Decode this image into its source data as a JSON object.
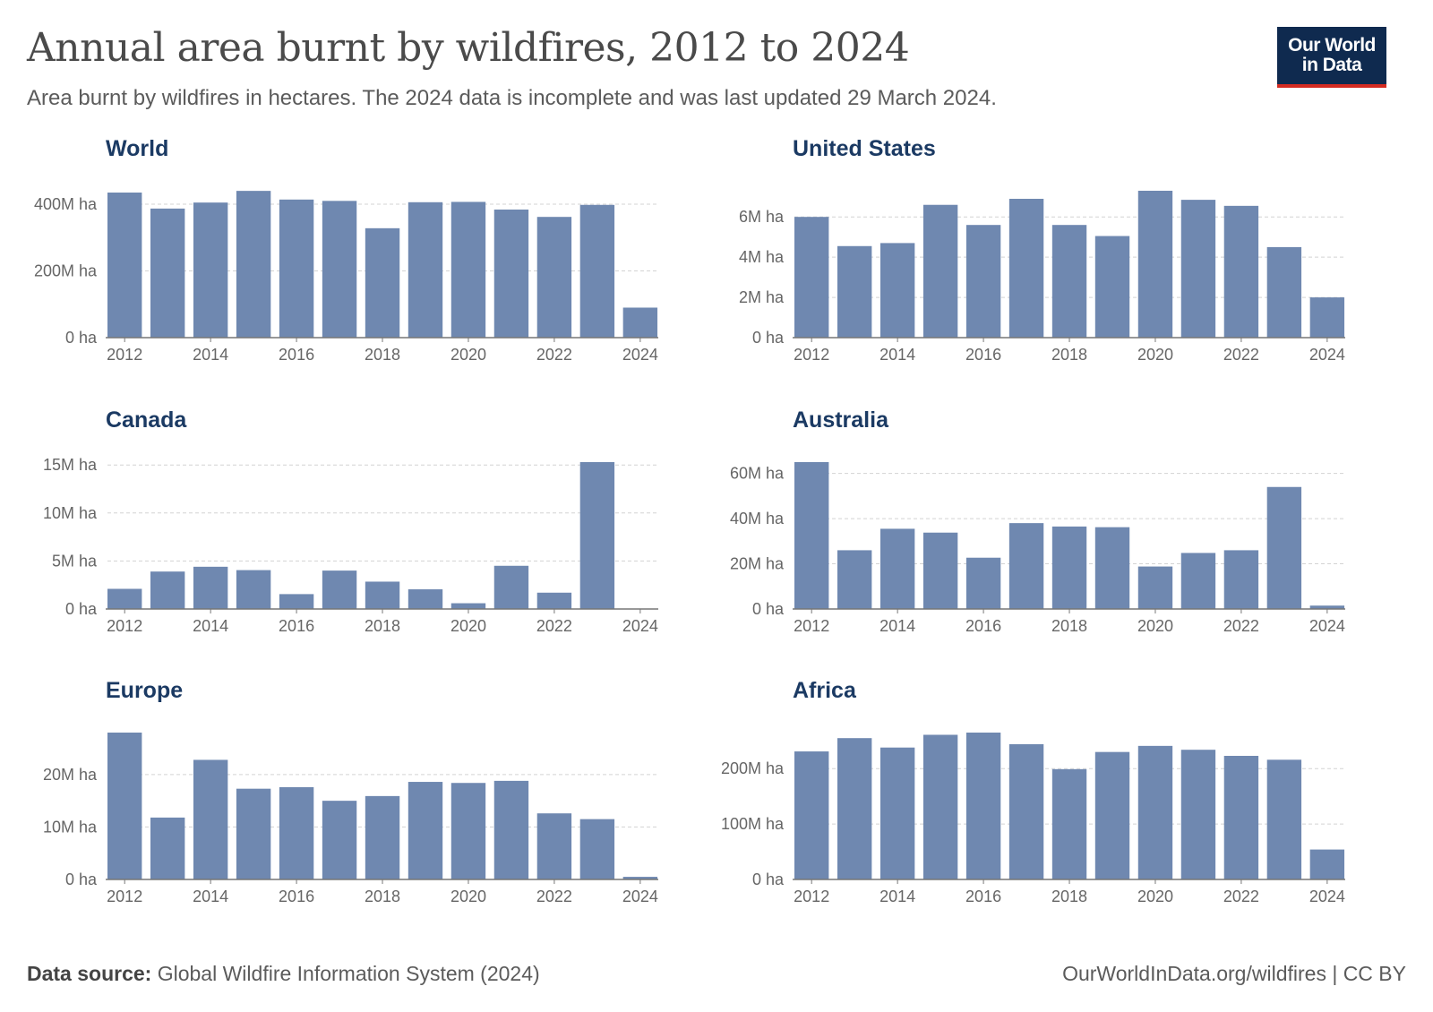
{
  "header": {
    "title": "Annual area burnt by wildfires, 2012 to 2024",
    "subtitle": "Area burnt by wildfires in hectares. The 2024 data is incomplete and was last updated 29 March 2024.",
    "logo_line1": "Our World",
    "logo_line2": "in Data"
  },
  "footer": {
    "source_label": "Data source:",
    "source_text": "Global Wildfire Information System (2024)",
    "credit": "OurWorldInData.org/wildfires | CC BY"
  },
  "colors": {
    "bar": "#6f88b0",
    "panel_title": "#1b3a63",
    "grid": "#d3d3d3",
    "logo_bg": "#0f2a4f",
    "logo_accent": "#d42b21"
  },
  "chart_data": [
    {
      "type": "bar",
      "title": "World",
      "categories": [
        "2012",
        "2013",
        "2014",
        "2015",
        "2016",
        "2017",
        "2018",
        "2019",
        "2020",
        "2021",
        "2022",
        "2023",
        "2024"
      ],
      "x_tick_labels": [
        "2012",
        "2014",
        "2016",
        "2018",
        "2020",
        "2022",
        "2024"
      ],
      "values": [
        435000000,
        387000000,
        405000000,
        440000000,
        414000000,
        410000000,
        328000000,
        406000000,
        407000000,
        384000000,
        362000000,
        398000000,
        90000000
      ],
      "ylim": [
        0,
        435000000
      ],
      "yticks": [
        0,
        200000000,
        400000000
      ],
      "ytick_labels": [
        "0 ha",
        "200M ha",
        "400M ha"
      ]
    },
    {
      "type": "bar",
      "title": "United States",
      "categories": [
        "2012",
        "2013",
        "2014",
        "2015",
        "2016",
        "2017",
        "2018",
        "2019",
        "2020",
        "2021",
        "2022",
        "2023",
        "2024"
      ],
      "x_tick_labels": [
        "2012",
        "2014",
        "2016",
        "2018",
        "2020",
        "2022",
        "2024"
      ],
      "values": [
        6000000,
        4550000,
        4700000,
        6600000,
        5600000,
        6900000,
        5600000,
        5050000,
        7300000,
        6850000,
        6550000,
        4500000,
        2000000
      ],
      "ylim": [
        0,
        7300000
      ],
      "yticks": [
        0,
        2000000,
        4000000,
        6000000
      ],
      "ytick_labels": [
        "0 ha",
        "2M ha",
        "4M ha",
        "6M ha"
      ]
    },
    {
      "type": "bar",
      "title": "Canada",
      "categories": [
        "2012",
        "2013",
        "2014",
        "2015",
        "2016",
        "2017",
        "2018",
        "2019",
        "2020",
        "2021",
        "2022",
        "2023",
        "2024"
      ],
      "x_tick_labels": [
        "2012",
        "2014",
        "2016",
        "2018",
        "2020",
        "2022",
        "2024"
      ],
      "values": [
        2100000,
        3900000,
        4400000,
        4050000,
        1550000,
        4000000,
        2850000,
        2050000,
        600000,
        4500000,
        1700000,
        15300000,
        0
      ],
      "ylim": [
        0,
        15300000
      ],
      "yticks": [
        0,
        5000000,
        10000000,
        15000000
      ],
      "ytick_labels": [
        "0 ha",
        "5M ha",
        "10M ha",
        "15M ha"
      ]
    },
    {
      "type": "bar",
      "title": "Australia",
      "categories": [
        "2012",
        "2013",
        "2014",
        "2015",
        "2016",
        "2017",
        "2018",
        "2019",
        "2020",
        "2021",
        "2022",
        "2023",
        "2024"
      ],
      "x_tick_labels": [
        "2012",
        "2014",
        "2016",
        "2018",
        "2020",
        "2022",
        "2024"
      ],
      "values": [
        65000000,
        26000000,
        35500000,
        33800000,
        22700000,
        38000000,
        36500000,
        36200000,
        18800000,
        24800000,
        26000000,
        54000000,
        1500000
      ],
      "ylim": [
        0,
        65000000
      ],
      "yticks": [
        0,
        20000000,
        40000000,
        60000000
      ],
      "ytick_labels": [
        "0 ha",
        "20M ha",
        "40M ha",
        "60M ha"
      ]
    },
    {
      "type": "bar",
      "title": "Europe",
      "categories": [
        "2012",
        "2013",
        "2014",
        "2015",
        "2016",
        "2017",
        "2018",
        "2019",
        "2020",
        "2021",
        "2022",
        "2023",
        "2024"
      ],
      "x_tick_labels": [
        "2012",
        "2014",
        "2016",
        "2018",
        "2020",
        "2022",
        "2024"
      ],
      "values": [
        28000000,
        11800000,
        22800000,
        17300000,
        17600000,
        15000000,
        15900000,
        18600000,
        18400000,
        18800000,
        12600000,
        11500000,
        500000
      ],
      "ylim": [
        0,
        28000000
      ],
      "yticks": [
        0,
        10000000,
        20000000
      ],
      "ytick_labels": [
        "0 ha",
        "10M ha",
        "20M ha"
      ]
    },
    {
      "type": "bar",
      "title": "Africa",
      "categories": [
        "2012",
        "2013",
        "2014",
        "2015",
        "2016",
        "2017",
        "2018",
        "2019",
        "2020",
        "2021",
        "2022",
        "2023",
        "2024"
      ],
      "x_tick_labels": [
        "2012",
        "2014",
        "2016",
        "2018",
        "2020",
        "2022",
        "2024"
      ],
      "values": [
        231000000,
        255000000,
        238000000,
        261000000,
        265000000,
        244000000,
        199000000,
        230000000,
        241000000,
        234000000,
        223000000,
        216000000,
        54000000
      ],
      "ylim": [
        0,
        265000000
      ],
      "yticks": [
        0,
        100000000,
        200000000
      ],
      "ytick_labels": [
        "0 ha",
        "100M ha",
        "200M ha"
      ]
    }
  ]
}
